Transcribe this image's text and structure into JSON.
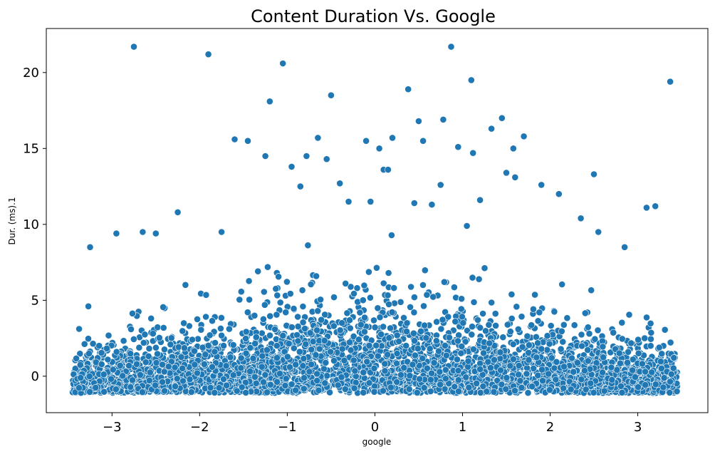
{
  "chart_data": {
    "type": "scatter",
    "title": "Content Duration Vs. Google",
    "xlabel": "google",
    "ylabel": "Dur. (ms).1",
    "xlim": [
      -3.75,
      3.8
    ],
    "ylim": [
      -2.4,
      22.9
    ],
    "xticks": [
      -3,
      -2,
      -1,
      0,
      1,
      2,
      3
    ],
    "yticks": [
      0,
      5,
      10,
      15,
      20
    ],
    "xtick_labels": [
      "−3",
      "−2",
      "−1",
      "0",
      "1",
      "2",
      "3"
    ],
    "ytick_labels": [
      "0",
      "5",
      "10",
      "15",
      "20"
    ],
    "grid": false,
    "legend": "none",
    "color": "#1f77b4",
    "series": [
      {
        "x": [
          -2.75,
          -1.9,
          -1.05,
          0.87,
          3.37,
          1.1,
          -0.5,
          0.38,
          -1.2,
          1.45,
          0.5,
          0.78,
          1.33,
          1.7,
          0.55,
          -1.6,
          -1.45,
          0.95,
          -0.65,
          0.2,
          -0.1,
          0.05,
          1.58,
          1.12,
          -0.78,
          0.1,
          -1.25,
          -0.95,
          -0.55,
          0.15,
          1.5,
          1.6,
          2.5,
          -0.4,
          -0.05,
          2.1,
          -0.85,
          1.9,
          0.75,
          1.2,
          0.45,
          0.65,
          -2.25,
          3.2,
          3.1,
          -0.3,
          1.05,
          2.35,
          2.55,
          -1.75,
          -2.95,
          -2.65,
          -2.5,
          2.85,
          -3.25
        ],
        "y": [
          21.7,
          21.2,
          20.6,
          21.7,
          19.4,
          19.5,
          18.5,
          18.9,
          18.1,
          17.0,
          16.8,
          16.9,
          16.3,
          15.8,
          15.5,
          15.6,
          15.5,
          15.1,
          15.7,
          15.7,
          15.5,
          15.0,
          15.0,
          14.7,
          14.5,
          13.6,
          14.5,
          13.8,
          14.3,
          13.6,
          13.4,
          13.1,
          13.3,
          12.7,
          11.5,
          12.0,
          12.5,
          12.6,
          12.6,
          11.6,
          11.4,
          11.3,
          10.8,
          11.2,
          11.1,
          11.5,
          9.9,
          10.4,
          9.5,
          9.5,
          9.4,
          9.5,
          9.4,
          8.5,
          8.5
        ]
      }
    ]
  }
}
